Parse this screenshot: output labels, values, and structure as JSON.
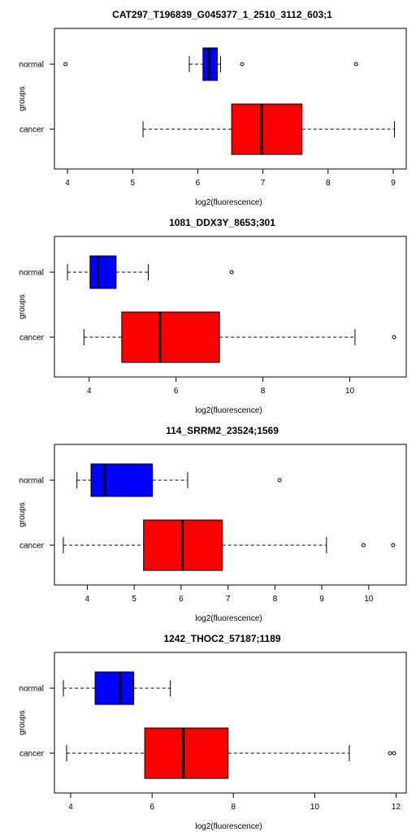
{
  "colors": {
    "normal": "#0000ff",
    "cancer": "#ff0000",
    "outline": "#000000",
    "background": "#ffffff"
  },
  "chart_data": [
    {
      "type": "boxplot",
      "orientation": "horizontal",
      "title": "CAT297_T196839_G045377_1_2510_3112_603;1",
      "xlabel": "log2(fluorescence)",
      "ylabel": "groups",
      "xlim": [
        3.8,
        9.2
      ],
      "xticks": [
        4,
        5,
        6,
        7,
        8,
        9
      ],
      "xtick_labels": [
        "4",
        "5",
        "6",
        "7",
        "8",
        "9"
      ],
      "grid": false,
      "series": [
        {
          "name": "normal",
          "whisker_low": 5.87,
          "q1": 6.08,
          "median": 6.17,
          "q3": 6.3,
          "whisker_high": 6.35,
          "outliers": [
            3.97,
            6.68,
            8.43
          ]
        },
        {
          "name": "cancer",
          "whisker_low": 5.16,
          "q1": 6.52,
          "median": 6.98,
          "q3": 7.6,
          "whisker_high": 9.02,
          "outliers": []
        }
      ]
    },
    {
      "type": "boxplot",
      "orientation": "horizontal",
      "title": "1081_DDX3Y_8653;301",
      "xlabel": "log2(fluorescence)",
      "ylabel": "groups",
      "xlim": [
        3.2,
        11.3
      ],
      "xticks": [
        4,
        6,
        8,
        10
      ],
      "xtick_labels": [
        "4",
        "6",
        "8",
        "10"
      ],
      "grid": false,
      "series": [
        {
          "name": "normal",
          "whisker_low": 3.5,
          "q1": 4.02,
          "median": 4.2,
          "q3": 4.62,
          "whisker_high": 5.36,
          "outliers": [
            7.28
          ]
        },
        {
          "name": "cancer",
          "whisker_low": 3.88,
          "q1": 4.75,
          "median": 5.63,
          "q3": 7.0,
          "whisker_high": 10.12,
          "outliers": [
            11.02
          ]
        }
      ]
    },
    {
      "type": "boxplot",
      "orientation": "horizontal",
      "title": "114_SRRM2_23524;1569",
      "xlabel": "log2(fluorescence)",
      "ylabel": "groups",
      "xlim": [
        3.3,
        10.8
      ],
      "xticks": [
        4,
        5,
        6,
        7,
        8,
        9,
        10
      ],
      "xtick_labels": [
        "4",
        "5",
        "6",
        "7",
        "8",
        "9",
        "10"
      ],
      "grid": false,
      "series": [
        {
          "name": "normal",
          "whisker_low": 3.78,
          "q1": 4.08,
          "median": 4.37,
          "q3": 5.39,
          "whisker_high": 6.14,
          "outliers": [
            8.1
          ]
        },
        {
          "name": "cancer",
          "whisker_low": 3.49,
          "q1": 5.2,
          "median": 6.03,
          "q3": 6.88,
          "whisker_high": 9.1,
          "outliers": [
            9.89,
            10.52
          ]
        }
      ]
    },
    {
      "type": "boxplot",
      "orientation": "horizontal",
      "title": "1242_THOC2_57187;1189",
      "xlabel": "log2(fluorescence)",
      "ylabel": "groups",
      "xlim": [
        3.6,
        12.25
      ],
      "xticks": [
        4,
        6,
        8,
        10,
        12
      ],
      "xtick_labels": [
        "4",
        "6",
        "8",
        "10",
        "12"
      ],
      "grid": false,
      "series": [
        {
          "name": "normal",
          "whisker_low": 3.82,
          "q1": 4.6,
          "median": 5.22,
          "q3": 5.55,
          "whisker_high": 6.45,
          "outliers": []
        },
        {
          "name": "cancer",
          "whisker_low": 3.9,
          "q1": 5.82,
          "median": 6.77,
          "q3": 7.87,
          "whisker_high": 10.85,
          "outliers": [
            11.85,
            11.95
          ]
        }
      ]
    }
  ]
}
